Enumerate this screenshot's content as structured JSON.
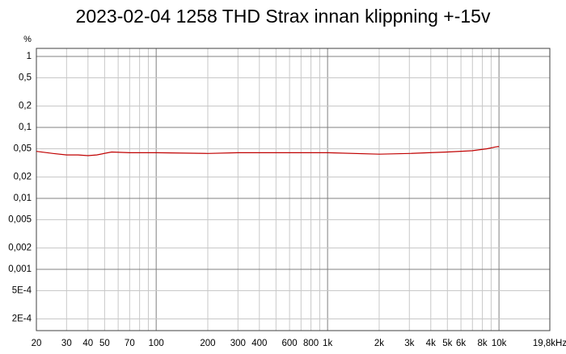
{
  "chart_data": {
    "type": "line",
    "title": "2023-02-04 1258 THD Strax innan klippning +-15v",
    "y_unit": "%",
    "xscale": "log",
    "yscale": "log",
    "grid": true,
    "xlim": [
      20,
      19800
    ],
    "ylim": [
      0.000137,
      1.3
    ],
    "xticks": [
      20,
      30,
      40,
      50,
      70,
      100,
      200,
      300,
      400,
      600,
      800,
      {
        "value": 1000,
        "label": "1k"
      },
      {
        "value": 2000,
        "label": "2k"
      },
      {
        "value": 3000,
        "label": "3k"
      },
      {
        "value": 4000,
        "label": "4k"
      },
      {
        "value": 5000,
        "label": "5k"
      },
      {
        "value": 6000,
        "label": "6k"
      },
      {
        "value": 8000,
        "label": "8k"
      },
      {
        "value": 10000,
        "label": "10k"
      },
      {
        "value": 19800,
        "label": "19,8kHz"
      }
    ],
    "xminor": [
      60,
      80,
      90,
      500,
      700,
      900,
      7000,
      9000
    ],
    "yticks": [
      1,
      {
        "value": 0.5,
        "label": "0,5"
      },
      {
        "value": 0.2,
        "label": "0,2"
      },
      {
        "value": 0.1,
        "label": "0,1"
      },
      {
        "value": 0.05,
        "label": "0,05"
      },
      {
        "value": 0.02,
        "label": "0,02"
      },
      {
        "value": 0.01,
        "label": "0,01"
      },
      {
        "value": 0.005,
        "label": "0,005"
      },
      {
        "value": 0.002,
        "label": "0,002"
      },
      {
        "value": 0.001,
        "label": "0,001"
      },
      {
        "value": 0.0005,
        "label": "5E-4"
      },
      {
        "value": 0.0002,
        "label": "2E-4"
      }
    ],
    "x": [
      20,
      25,
      30,
      35,
      40,
      45,
      55,
      70,
      100,
      200,
      300,
      500,
      1000,
      2000,
      3000,
      5000,
      7000,
      8500,
      9500,
      10000
    ],
    "series": [
      {
        "name": "THD",
        "color": "#c00000",
        "values": [
          0.046,
          0.043,
          0.041,
          0.041,
          0.04,
          0.041,
          0.045,
          0.044,
          0.044,
          0.043,
          0.044,
          0.044,
          0.044,
          0.042,
          0.043,
          0.045,
          0.047,
          0.05,
          0.053,
          0.054
        ]
      }
    ]
  }
}
